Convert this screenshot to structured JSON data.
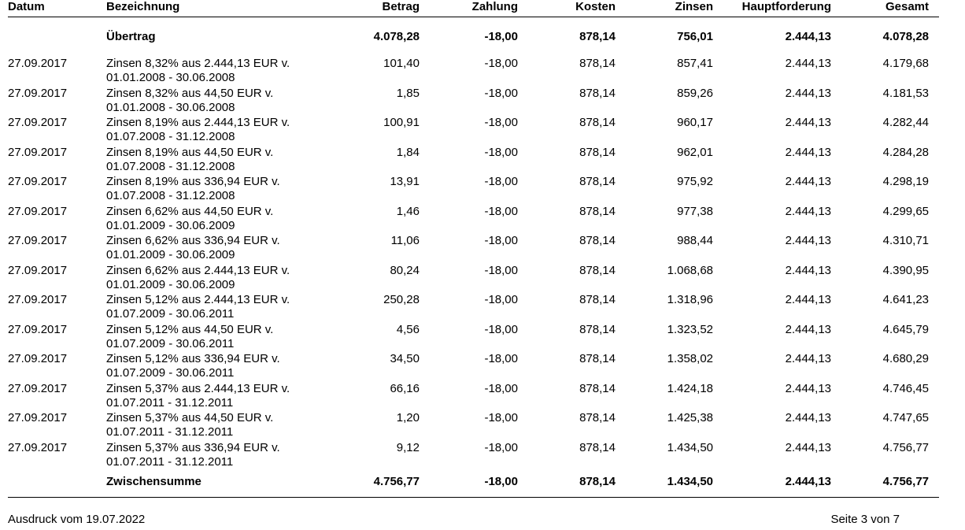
{
  "headers": {
    "datum": "Datum",
    "bezeichnung": "Bezeichnung",
    "betrag": "Betrag",
    "zahlung": "Zahlung",
    "kosten": "Kosten",
    "zinsen": "Zinsen",
    "hauptforderung": "Hauptforderung",
    "gesamt": "Gesamt"
  },
  "uebertrag": {
    "label": "Übertrag",
    "betrag": "4.078,28",
    "zahlung": "-18,00",
    "kosten": "878,14",
    "zinsen": "756,01",
    "hauptforderung": "2.444,13",
    "gesamt": "4.078,28"
  },
  "rows": [
    {
      "datum": "27.09.2017",
      "line1": "Zinsen 8,32% aus 2.444,13 EUR v.",
      "line2": "01.01.2008 - 30.06.2008",
      "betrag": "101,40",
      "zahlung": "-18,00",
      "kosten": "878,14",
      "zinsen": "857,41",
      "hauptforderung": "2.444,13",
      "gesamt": "4.179,68"
    },
    {
      "datum": "27.09.2017",
      "line1": "Zinsen 8,32% aus 44,50 EUR v.",
      "line2": "01.01.2008 - 30.06.2008",
      "betrag": "1,85",
      "zahlung": "-18,00",
      "kosten": "878,14",
      "zinsen": "859,26",
      "hauptforderung": "2.444,13",
      "gesamt": "4.181,53"
    },
    {
      "datum": "27.09.2017",
      "line1": "Zinsen 8,19% aus 2.444,13 EUR v.",
      "line2": "01.07.2008 - 31.12.2008",
      "betrag": "100,91",
      "zahlung": "-18,00",
      "kosten": "878,14",
      "zinsen": "960,17",
      "hauptforderung": "2.444,13",
      "gesamt": "4.282,44"
    },
    {
      "datum": "27.09.2017",
      "line1": "Zinsen 8,19% aus 44,50 EUR v.",
      "line2": "01.07.2008 - 31.12.2008",
      "betrag": "1,84",
      "zahlung": "-18,00",
      "kosten": "878,14",
      "zinsen": "962,01",
      "hauptforderung": "2.444,13",
      "gesamt": "4.284,28"
    },
    {
      "datum": "27.09.2017",
      "line1": "Zinsen 8,19% aus 336,94 EUR v.",
      "line2": "01.07.2008 - 31.12.2008",
      "betrag": "13,91",
      "zahlung": "-18,00",
      "kosten": "878,14",
      "zinsen": "975,92",
      "hauptforderung": "2.444,13",
      "gesamt": "4.298,19"
    },
    {
      "datum": "27.09.2017",
      "line1": "Zinsen 6,62% aus 44,50 EUR v.",
      "line2": "01.01.2009 - 30.06.2009",
      "betrag": "1,46",
      "zahlung": "-18,00",
      "kosten": "878,14",
      "zinsen": "977,38",
      "hauptforderung": "2.444,13",
      "gesamt": "4.299,65"
    },
    {
      "datum": "27.09.2017",
      "line1": "Zinsen 6,62% aus 336,94 EUR v.",
      "line2": "01.01.2009 - 30.06.2009",
      "betrag": "11,06",
      "zahlung": "-18,00",
      "kosten": "878,14",
      "zinsen": "988,44",
      "hauptforderung": "2.444,13",
      "gesamt": "4.310,71"
    },
    {
      "datum": "27.09.2017",
      "line1": "Zinsen 6,62% aus 2.444,13 EUR v.",
      "line2": "01.01.2009 - 30.06.2009",
      "betrag": "80,24",
      "zahlung": "-18,00",
      "kosten": "878,14",
      "zinsen": "1.068,68",
      "hauptforderung": "2.444,13",
      "gesamt": "4.390,95"
    },
    {
      "datum": "27.09.2017",
      "line1": "Zinsen 5,12% aus 2.444,13 EUR v.",
      "line2": "01.07.2009 - 30.06.2011",
      "betrag": "250,28",
      "zahlung": "-18,00",
      "kosten": "878,14",
      "zinsen": "1.318,96",
      "hauptforderung": "2.444,13",
      "gesamt": "4.641,23"
    },
    {
      "datum": "27.09.2017",
      "line1": "Zinsen 5,12% aus 44,50 EUR v.",
      "line2": "01.07.2009 - 30.06.2011",
      "betrag": "4,56",
      "zahlung": "-18,00",
      "kosten": "878,14",
      "zinsen": "1.323,52",
      "hauptforderung": "2.444,13",
      "gesamt": "4.645,79"
    },
    {
      "datum": "27.09.2017",
      "line1": "Zinsen 5,12% aus 336,94 EUR v.",
      "line2": "01.07.2009 - 30.06.2011",
      "betrag": "34,50",
      "zahlung": "-18,00",
      "kosten": "878,14",
      "zinsen": "1.358,02",
      "hauptforderung": "2.444,13",
      "gesamt": "4.680,29"
    },
    {
      "datum": "27.09.2017",
      "line1": "Zinsen 5,37% aus 2.444,13 EUR v.",
      "line2": "01.07.2011 - 31.12.2011",
      "betrag": "66,16",
      "zahlung": "-18,00",
      "kosten": "878,14",
      "zinsen": "1.424,18",
      "hauptforderung": "2.444,13",
      "gesamt": "4.746,45"
    },
    {
      "datum": "27.09.2017",
      "line1": "Zinsen 5,37% aus 44,50 EUR v.",
      "line2": "01.07.2011 - 31.12.2011",
      "betrag": "1,20",
      "zahlung": "-18,00",
      "kosten": "878,14",
      "zinsen": "1.425,38",
      "hauptforderung": "2.444,13",
      "gesamt": "4.747,65"
    },
    {
      "datum": "27.09.2017",
      "line1": "Zinsen 5,37% aus 336,94 EUR v.",
      "line2": "01.07.2011 - 31.12.2011",
      "betrag": "9,12",
      "zahlung": "-18,00",
      "kosten": "878,14",
      "zinsen": "1.434,50",
      "hauptforderung": "2.444,13",
      "gesamt": "4.756,77"
    }
  ],
  "zwischensumme": {
    "label": "Zwischensumme",
    "betrag": "4.756,77",
    "zahlung": "-18,00",
    "kosten": "878,14",
    "zinsen": "1.434,50",
    "hauptforderung": "2.444,13",
    "gesamt": "4.756,77"
  },
  "footer": {
    "printed": "Ausdruck vom 19.07.2022",
    "page": "Seite 3 von 7"
  }
}
